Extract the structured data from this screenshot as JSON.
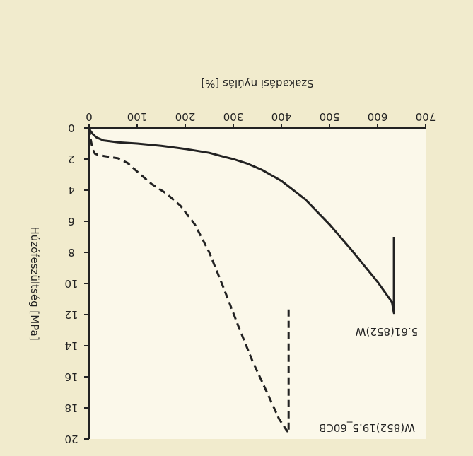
{
  "chart_data": {
    "type": "line",
    "title": "",
    "xlabel": "Szakadási nyúlás [%]",
    "ylabel": "Húzófeszültség [MPa]",
    "xlim": [
      0,
      700
    ],
    "ylim": [
      0,
      20
    ],
    "x_ticks": [
      0,
      100,
      200,
      300,
      400,
      500,
      600,
      700
    ],
    "y_ticks": [
      0,
      2,
      4,
      6,
      8,
      10,
      12,
      14,
      16,
      18,
      20
    ],
    "x_tick_labels": [
      "0",
      "100",
      "200",
      "300",
      "400",
      "500",
      "600",
      "700"
    ],
    "y_tick_labels": [
      "0",
      "2",
      "4",
      "6",
      "8",
      "10",
      "12",
      "14",
      "16",
      "18",
      "20"
    ],
    "grid": false,
    "orientation": "mirrored-and-flipped",
    "colors": {
      "background": "#f1ebcd",
      "plot_area": "#fbf8ea",
      "ink": "#222222"
    },
    "series": [
      {
        "label": "5.61(852)W",
        "style": "solid",
        "points": [
          [
            0,
            0
          ],
          [
            3,
            0.2
          ],
          [
            8,
            0.4
          ],
          [
            15,
            0.6
          ],
          [
            30,
            0.8
          ],
          [
            60,
            0.92
          ],
          [
            100,
            1.0
          ],
          [
            150,
            1.15
          ],
          [
            200,
            1.35
          ],
          [
            250,
            1.6
          ],
          [
            280,
            1.85
          ],
          [
            300,
            2.0
          ],
          [
            330,
            2.3
          ],
          [
            360,
            2.7
          ],
          [
            400,
            3.4
          ],
          [
            450,
            4.6
          ],
          [
            500,
            6.2
          ],
          [
            550,
            8.0
          ],
          [
            600,
            9.9
          ],
          [
            630,
            11.2
          ],
          [
            634,
            11.9
          ],
          [
            634,
            7.0
          ]
        ]
      },
      {
        "label": "W(852)19.5_60CB",
        "style": "dashed",
        "points": [
          [
            0,
            0
          ],
          [
            2,
            0.5
          ],
          [
            5,
            1.0
          ],
          [
            8,
            1.4
          ],
          [
            12,
            1.65
          ],
          [
            20,
            1.75
          ],
          [
            40,
            1.85
          ],
          [
            60,
            1.95
          ],
          [
            80,
            2.25
          ],
          [
            100,
            2.8
          ],
          [
            130,
            3.6
          ],
          [
            160,
            4.2
          ],
          [
            190,
            5.0
          ],
          [
            220,
            6.2
          ],
          [
            250,
            8.0
          ],
          [
            280,
            10.3
          ],
          [
            310,
            12.7
          ],
          [
            340,
            15.0
          ],
          [
            370,
            17.0
          ],
          [
            395,
            18.7
          ],
          [
            410,
            19.4
          ],
          [
            415,
            19.6
          ],
          [
            415,
            11.4
          ]
        ]
      }
    ]
  }
}
